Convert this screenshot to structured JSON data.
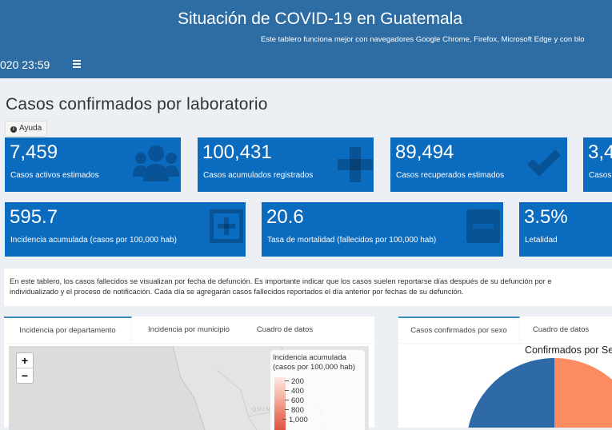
{
  "header": {
    "title": "Situación de COVID-19 en Guatemala",
    "subtitle": "Este tablero funciona mejor con navegadores Google Chrome, Firefox, Microsoft Edge y con blo",
    "date": "020 23:59"
  },
  "page_title": "Casos confirmados por laboratorio",
  "help_label": "Ayuda",
  "value_boxes": [
    {
      "value": "7,459",
      "label": "Casos activos estimados",
      "icon": "users-icon"
    },
    {
      "value": "100,431",
      "label": "Casos acumulados registrados",
      "icon": "plus-icon"
    },
    {
      "value": "89,494",
      "label": "Casos recuperados estimados",
      "icon": "check-icon"
    },
    {
      "value": "3,4",
      "label": "Casos",
      "icon": "none"
    },
    {
      "value": "595.7",
      "label": "Incidencia acumulada (casos por 100,000 hab)",
      "icon": "plus-square-icon"
    },
    {
      "value": "20.6",
      "label": "Tasa de mortalidad (fallecidos por 100,000 hab)",
      "icon": "minus-square-icon"
    },
    {
      "value": "3.5%",
      "label": "Letalidad",
      "icon": "none"
    }
  ],
  "info": {
    "line1": "En este tablero, los casos fallecidos se visualizan por fecha de defunción. Es importante indicar que los casos suelen reportarse días después de su defunción por e",
    "line2": "individualizado y el proceso de notificación. Cada día se agregarán casos fallecidos reportados el día anterior por fechas de su defunción."
  },
  "left_panel": {
    "tabs": [
      "Incidencia por departamento",
      "Incidencia por municipio",
      "Cuadro de datos"
    ],
    "zoom_in": "+",
    "zoom_out": "−",
    "map_label": "QUIN",
    "legend_title_1": "Incidencia acumulada",
    "legend_title_2": "(casos por 100,000 hab)",
    "legend_ticks": [
      "200",
      "400",
      "600",
      "800",
      "1,000"
    ]
  },
  "right_panel": {
    "tabs": [
      "Casos confirmados por sexo",
      "Cuadro de datos"
    ],
    "chart_title": "Confirmados por Se"
  },
  "colors": {
    "header": "#2e6da4",
    "value_box": "#0b6bbf",
    "pie_blue": "#2e6aa8",
    "pie_orange": "#fb8c62",
    "active_tab": "#3c8dbc"
  }
}
